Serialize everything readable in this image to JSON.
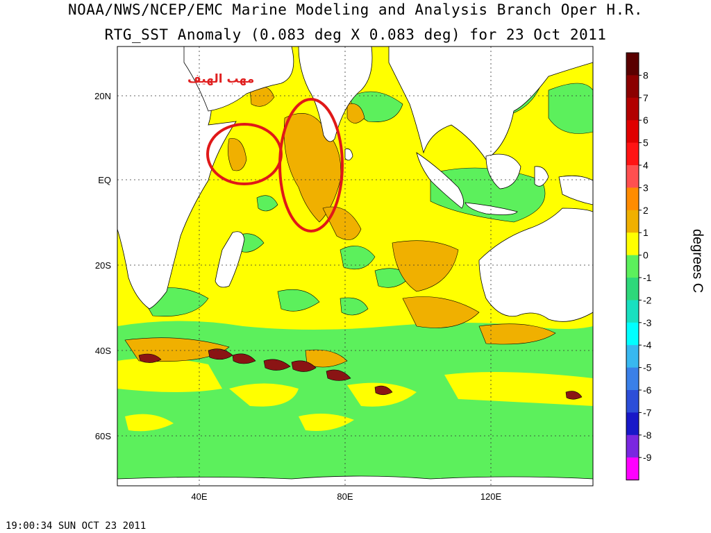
{
  "header": {
    "line1": "NOAA/NWS/NCEP/EMC Marine Modeling and Analysis Branch Oper H.R.",
    "line2": "RTG_SST Anomaly (0.083 deg X 0.083 deg) for 23 Oct 2011"
  },
  "map": {
    "lat_labels": [
      "20N",
      "EQ",
      "20S",
      "40S",
      "60S"
    ],
    "lon_labels": [
      "40E",
      "80E",
      "120E"
    ],
    "annotation_text": "مهب الهيف",
    "colors": {
      "land": "#ffffff",
      "anomaly_0_to_1": "#ffff00",
      "anomaly_1_to_2": "#f0b000",
      "anomaly_2_to_3": "#ec8a10",
      "anomaly_neg1_to_0": "#5cf05c",
      "anomaly_neg2_to_neg1": "#2ed87a",
      "anomaly_strong_pos": "#8a1414",
      "annotation_circle": "#e01818"
    }
  },
  "colorbar": {
    "labels": [
      "8",
      "7",
      "6",
      "5",
      "4",
      "3",
      "2",
      "1",
      "0",
      "-1",
      "-2",
      "-3",
      "-4",
      "-5",
      "-6",
      "-7",
      "-8",
      "-9"
    ],
    "colors": [
      "#5a0000",
      "#8b0000",
      "#b20000",
      "#e00000",
      "#ff1414",
      "#ff5050",
      "#ff8c00",
      "#f0b000",
      "#ffff00",
      "#5cf05c",
      "#2ed87a",
      "#18e0c0",
      "#00ffff",
      "#38b8f0",
      "#3a80e8",
      "#2c4ed8",
      "#1818c8",
      "#7a28e0",
      "#ff00ff"
    ],
    "units_label": "degrees C"
  },
  "footer": {
    "timestamp": "19:00:34  SUN OCT 23 2011"
  }
}
